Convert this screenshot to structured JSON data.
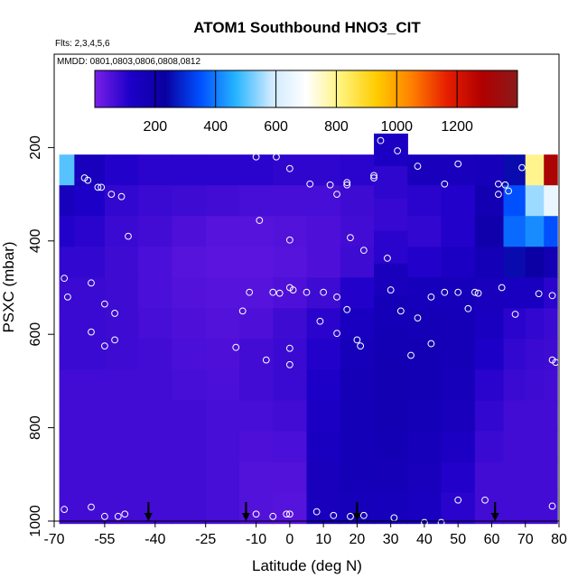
{
  "chart_data": {
    "type": "heatmap",
    "title": "ATOM1 Southbound HNO3_CIT",
    "flights_note": "Flts: 2,3,4,5,6",
    "dates_note": "MMDD: 0801,0803,0806,0808,0812",
    "xlabel": "Latitude (deg N)",
    "ylabel": "PSXC (mbar)",
    "xlim": [
      -70,
      80
    ],
    "ylim": [
      1000,
      0
    ],
    "x_ticks": [
      -70,
      -55,
      -40,
      -25,
      -10,
      0,
      10,
      20,
      30,
      40,
      50,
      60,
      70,
      80
    ],
    "y_ticks": [
      200,
      400,
      600,
      800,
      1000
    ],
    "colorbar": {
      "ticks": [
        200,
        400,
        600,
        800,
        1000,
        1200
      ],
      "range": [
        0,
        1400
      ],
      "colors": [
        "#7a1fe8",
        "#1d00c8",
        "#0a00a0",
        "#0050ff",
        "#26b4ff",
        "#cde9ff",
        "#ffffff",
        "#fff27a",
        "#ffcc00",
        "#ff8000",
        "#e61e00",
        "#b00000",
        "#8b1a1a"
      ]
    },
    "arrows_latitude": [
      -42,
      -13,
      20,
      61
    ],
    "columns": [
      {
        "lat": -68,
        "p_top": 215,
        "values": [
          500,
          150,
          110,
          90,
          80,
          80,
          80,
          70,
          70,
          70,
          70,
          70
        ]
      },
      {
        "lat": -60,
        "p_top": 215,
        "values": [
          150,
          120,
          100,
          90,
          80,
          80,
          80,
          70,
          70,
          70,
          70,
          70
        ]
      },
      {
        "lat": -50,
        "p_top": 215,
        "values": [
          110,
          90,
          80,
          75,
          75,
          75,
          75,
          70,
          70,
          70,
          70,
          70
        ]
      },
      {
        "lat": -40,
        "p_top": 215,
        "values": [
          100,
          80,
          70,
          60,
          60,
          65,
          70,
          70,
          70,
          70,
          70,
          70
        ]
      },
      {
        "lat": -30,
        "p_top": 215,
        "values": [
          100,
          75,
          55,
          45,
          50,
          55,
          60,
          65,
          70,
          70,
          70,
          70
        ]
      },
      {
        "lat": -20,
        "p_top": 215,
        "values": [
          100,
          70,
          45,
          40,
          45,
          50,
          55,
          60,
          65,
          65,
          65,
          65
        ]
      },
      {
        "lat": -10,
        "p_top": 215,
        "values": [
          100,
          65,
          45,
          40,
          45,
          55,
          70,
          70,
          65,
          55,
          50,
          50
        ]
      },
      {
        "lat": 0,
        "p_top": 215,
        "values": [
          95,
          65,
          50,
          45,
          55,
          75,
          80,
          80,
          70,
          60,
          50,
          45
        ]
      },
      {
        "lat": 10,
        "p_top": 215,
        "values": [
          95,
          65,
          55,
          55,
          75,
          100,
          110,
          120,
          130,
          140,
          150,
          150
        ]
      },
      {
        "lat": 20,
        "p_top": 215,
        "values": [
          100,
          75,
          70,
          75,
          110,
          140,
          160,
          165,
          170,
          170,
          170,
          160
        ]
      },
      {
        "lat": 30,
        "p_top": 170,
        "values": [
          130,
          95,
          85,
          100,
          150,
          170,
          175,
          180,
          180,
          175,
          165,
          155
        ]
      },
      {
        "lat": 40,
        "p_top": 215,
        "values": [
          150,
          100,
          90,
          110,
          155,
          170,
          175,
          175,
          170,
          160,
          150,
          140
        ]
      },
      {
        "lat": 50,
        "p_top": 215,
        "values": [
          150,
          110,
          110,
          130,
          160,
          165,
          165,
          160,
          150,
          130,
          110,
          100
        ]
      },
      {
        "lat": 60,
        "p_top": 215,
        "values": [
          160,
          180,
          200,
          170,
          150,
          140,
          120,
          100,
          90,
          80,
          70,
          70
        ]
      },
      {
        "lat": 67,
        "p_top": 215,
        "values": [
          250,
          350,
          380,
          250,
          140,
          100,
          90,
          80,
          70,
          70,
          70,
          70
        ]
      },
      {
        "lat": 73,
        "p_top": 215,
        "values": [
          800,
          550,
          420,
          220,
          140,
          90,
          80,
          75,
          70,
          70,
          70,
          70
        ]
      },
      {
        "lat": 78,
        "p_top": 215,
        "values": [
          1300,
          650,
          350,
          180,
          100,
          80,
          75,
          70,
          70,
          70,
          70,
          70
        ]
      }
    ],
    "sample_points": [
      [
        -67,
        480
      ],
      [
        -66,
        520
      ],
      [
        -61,
        265
      ],
      [
        -60,
        270
      ],
      [
        -59,
        490
      ],
      [
        -57,
        285
      ],
      [
        -56,
        285
      ],
      [
        -55,
        535
      ],
      [
        -53,
        300
      ],
      [
        -52,
        555
      ],
      [
        -50,
        305
      ],
      [
        -48,
        390
      ],
      [
        -59,
        595
      ],
      [
        -55,
        625
      ],
      [
        -52,
        612
      ],
      [
        -67,
        975
      ],
      [
        -59,
        970
      ],
      [
        -55,
        990
      ],
      [
        -51,
        990
      ],
      [
        -49,
        985
      ],
      [
        -10,
        220
      ],
      [
        -4,
        220
      ],
      [
        0,
        245
      ],
      [
        6,
        278
      ],
      [
        12,
        280
      ],
      [
        14,
        300
      ],
      [
        17,
        275
      ],
      [
        -9,
        356
      ],
      [
        0,
        398
      ],
      [
        18,
        393
      ],
      [
        22,
        420
      ],
      [
        29,
        437
      ],
      [
        -12,
        510
      ],
      [
        -5,
        510
      ],
      [
        -3,
        512
      ],
      [
        0,
        500
      ],
      [
        1,
        505
      ],
      [
        5,
        510
      ],
      [
        10,
        510
      ],
      [
        14,
        520
      ],
      [
        17,
        547
      ],
      [
        -14,
        550
      ],
      [
        -16,
        628
      ],
      [
        -7,
        655
      ],
      [
        0,
        630
      ],
      [
        0,
        665
      ],
      [
        9,
        572
      ],
      [
        14,
        598
      ],
      [
        20,
        612
      ],
      [
        21,
        625
      ],
      [
        30,
        505
      ],
      [
        33,
        550
      ],
      [
        38,
        565
      ],
      [
        42,
        520
      ],
      [
        46,
        510
      ],
      [
        50,
        510
      ],
      [
        53,
        545
      ],
      [
        55,
        510
      ],
      [
        56,
        512
      ],
      [
        42,
        620
      ],
      [
        36,
        645
      ],
      [
        63,
        500
      ],
      [
        67,
        557
      ],
      [
        74,
        513
      ],
      [
        78,
        517
      ],
      [
        78,
        655
      ],
      [
        79,
        660
      ],
      [
        17,
        280
      ],
      [
        25,
        265
      ],
      [
        27,
        185
      ],
      [
        32,
        207
      ],
      [
        38,
        240
      ],
      [
        50,
        235
      ],
      [
        46,
        278
      ],
      [
        62,
        278
      ],
      [
        64,
        280
      ],
      [
        65,
        293
      ],
      [
        69,
        243
      ],
      [
        -10,
        985
      ],
      [
        -5,
        990
      ],
      [
        -1,
        985
      ],
      [
        0,
        985
      ],
      [
        8,
        980
      ],
      [
        13,
        988
      ],
      [
        18,
        990
      ],
      [
        22,
        988
      ],
      [
        31,
        993
      ],
      [
        40,
        1003
      ],
      [
        45,
        1003
      ],
      [
        50,
        955
      ],
      [
        58,
        955
      ],
      [
        78,
        968
      ],
      [
        62,
        300
      ],
      [
        25,
        260
      ]
    ]
  }
}
